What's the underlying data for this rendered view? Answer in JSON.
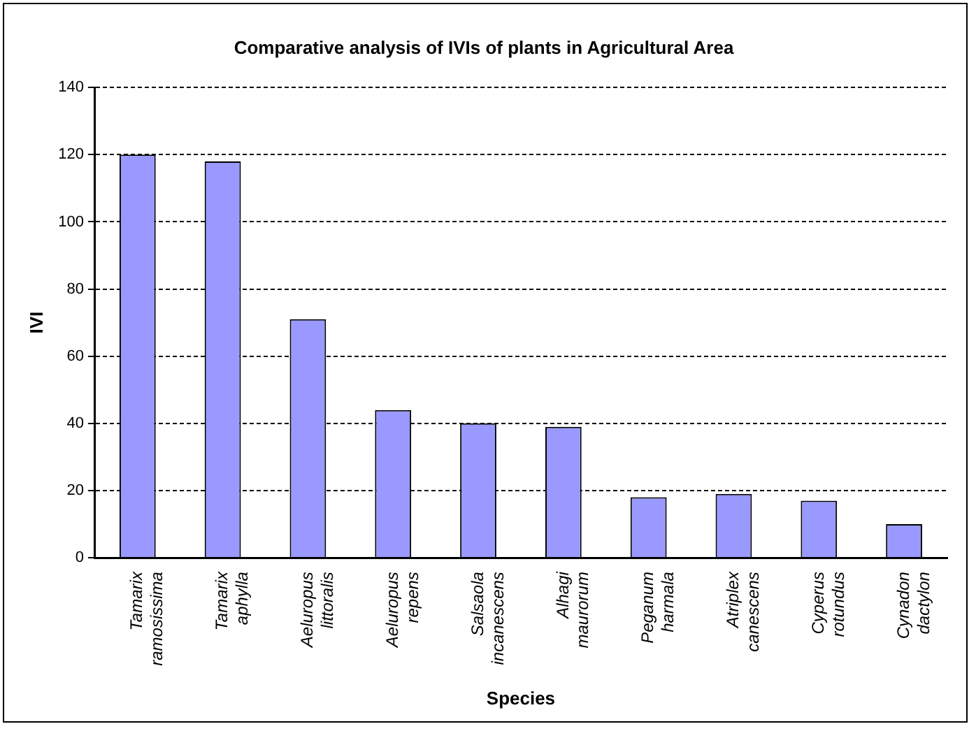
{
  "chart_data": {
    "type": "bar",
    "title": "Comparative analysis of IVIs of plants in Agricultural Area",
    "xlabel": "Species",
    "ylabel": "IVI",
    "categories": [
      "Tamarix ramosissima",
      "Tamarix aphylla",
      "Aeluropus littoralis",
      "Aeluropus repens",
      "Salsaola incanescens",
      "Alhagi maurorum",
      "Peganum harmala",
      "Atriplex canescens",
      "Cyperus rotundus",
      "Cynadon dactylon"
    ],
    "values": [
      120,
      118,
      71,
      44,
      40,
      39,
      18,
      19,
      17,
      10
    ],
    "color": "#9999ff",
    "ylim": [
      0,
      140
    ],
    "yticks": [
      0,
      20,
      40,
      60,
      80,
      100,
      120,
      140
    ],
    "grid": "y",
    "legend": false
  }
}
